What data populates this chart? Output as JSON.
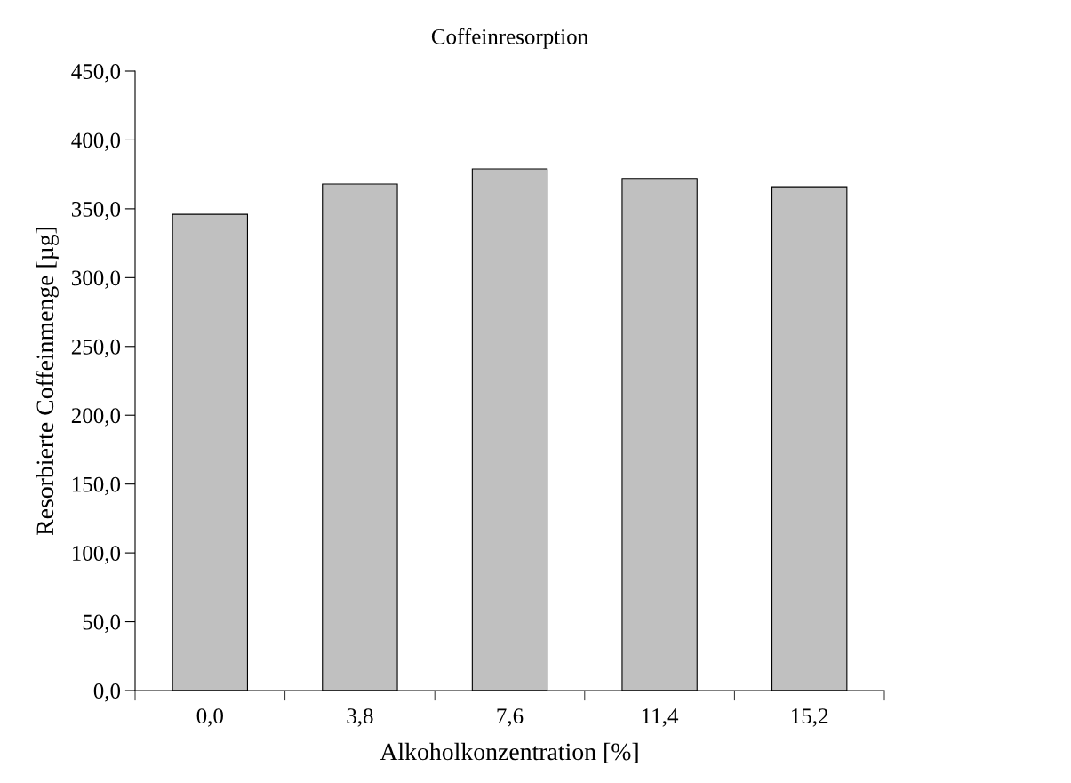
{
  "chart_data": {
    "type": "bar",
    "title": "Coffeinresorption",
    "xlabel": "Alkoholkonzentration [%]",
    "ylabel": "Resorbierte Coffeinmenge [µg]",
    "categories": [
      "0,0",
      "3,8",
      "7,6",
      "11,4",
      "15,2"
    ],
    "values": [
      346,
      368,
      379,
      372,
      366
    ],
    "color": "#c0c0c0",
    "ylim": [
      0,
      450
    ],
    "yticks": [
      {
        "value": 0,
        "label": "0,0"
      },
      {
        "value": 50,
        "label": "50,0"
      },
      {
        "value": 100,
        "label": "100,0"
      },
      {
        "value": 150,
        "label": "150,0"
      },
      {
        "value": 200,
        "label": "200,0"
      },
      {
        "value": 250,
        "label": "250,0"
      },
      {
        "value": 300,
        "label": "300,0"
      },
      {
        "value": 350,
        "label": "350,0"
      },
      {
        "value": 400,
        "label": "400,0"
      },
      {
        "value": 450,
        "label": "450,0"
      }
    ],
    "grid": false,
    "legend": false
  }
}
